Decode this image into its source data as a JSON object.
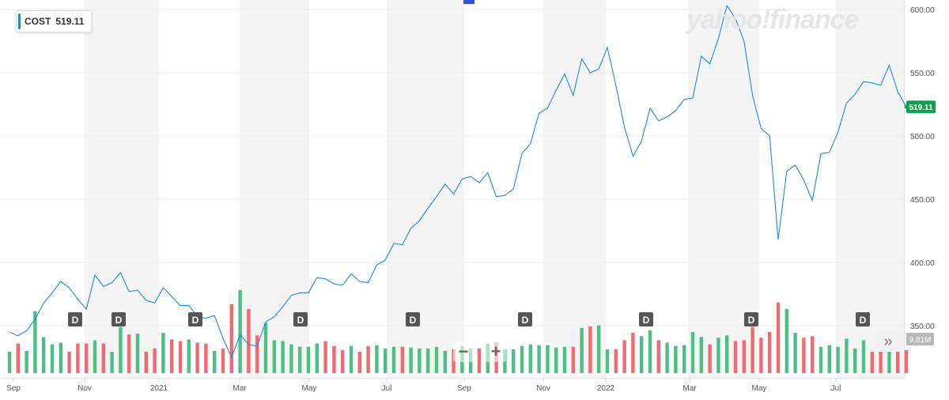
{
  "ticker": {
    "symbol": "COST",
    "price": "519.11"
  },
  "brand": "yahoo!finance",
  "price_tag": "519.11",
  "volume_tag": "9.81M",
  "controls": {
    "zoom_out": "−",
    "zoom_in": "+",
    "collapse": "»"
  },
  "colors": {
    "line": "#1e88e5",
    "up": "#4cbf84",
    "down": "#f16a72",
    "price_tag_bg": "#11a150",
    "volume_tag_bg": "#b8b8b8",
    "band": "#f4f4f4"
  },
  "chart_data": {
    "type": "line",
    "series": [
      {
        "name": "COST",
        "y": [
          345,
          342,
          346,
          355,
          368,
          376,
          385,
          380,
          371,
          363,
          390,
          381,
          384,
          392,
          377,
          378,
          370,
          368,
          380,
          373,
          366,
          366,
          357,
          356,
          358,
          340,
          325,
          343,
          335,
          334,
          353,
          357,
          365,
          374,
          376,
          376,
          388,
          387,
          383,
          382,
          391,
          385,
          384,
          398,
          402,
          415,
          414,
          427,
          433,
          443,
          452,
          462,
          454,
          466,
          468,
          463,
          471,
          452,
          453,
          458,
          486,
          494,
          518,
          522,
          536,
          549,
          532,
          561,
          550,
          553,
          570,
          540,
          507,
          484,
          496,
          522,
          512,
          515,
          520,
          529,
          530,
          563,
          557,
          577,
          603,
          593,
          575,
          532,
          506,
          500,
          418,
          472,
          477,
          465,
          449,
          486,
          487,
          503,
          526,
          533,
          543,
          542,
          540,
          556,
          535,
          523
        ]
      }
    ],
    "x_labels": [
      "Sep",
      "Nov",
      "2021",
      "Mar",
      "May",
      "Jul",
      "Sep",
      "Nov",
      "2022",
      "Mar",
      "May",
      "Jul"
    ],
    "y_ticks": [
      "600.00",
      "550.00",
      "500.00",
      "450.00",
      "400.00",
      "350.00"
    ],
    "ylim": [
      325,
      605
    ],
    "volume": [
      2.6,
      3.6,
      2.7,
      7.5,
      4.4,
      3.5,
      3.7,
      2.6,
      3.6,
      3.6,
      4.0,
      3.6,
      2.6,
      5.6,
      4.7,
      4.8,
      2.6,
      3.0,
      4.9,
      4.1,
      3.9,
      4.1,
      3.7,
      3.6,
      2.7,
      3.0,
      8.4,
      10.1,
      7.8,
      4.6,
      6.1,
      4.0,
      3.9,
      3.5,
      3.2,
      3.2,
      3.6,
      3.9,
      3.3,
      2.8,
      3.3,
      2.6,
      3.3,
      3.4,
      3.0,
      3.2,
      3.2,
      3.1,
      3.0,
      3.0,
      3.2,
      2.7,
      2.9,
      3.3,
      3.0,
      3.0,
      3.6,
      3.7,
      2.9,
      2.9,
      3.3,
      3.5,
      3.4,
      3.4,
      3.1,
      3.2,
      3.2,
      5.5,
      5.7,
      5.8,
      2.9,
      2.9,
      4.0,
      4.9,
      4.5,
      5.2,
      4.0,
      3.7,
      3.3,
      3.4,
      5.0,
      4.4,
      3.5,
      4.3,
      4.6,
      3.9,
      4.0,
      5.6,
      4.3,
      5.0,
      8.6,
      7.8,
      4.9,
      4.3,
      4.5,
      3.2,
      3.4,
      3.2,
      4.2,
      3.0,
      4.0,
      2.6,
      3.3,
      2.7,
      2.6,
      2.8
    ]
  },
  "dividends": [
    "D",
    "D",
    "D",
    "D",
    "D",
    "D",
    "D",
    "D",
    "D"
  ]
}
